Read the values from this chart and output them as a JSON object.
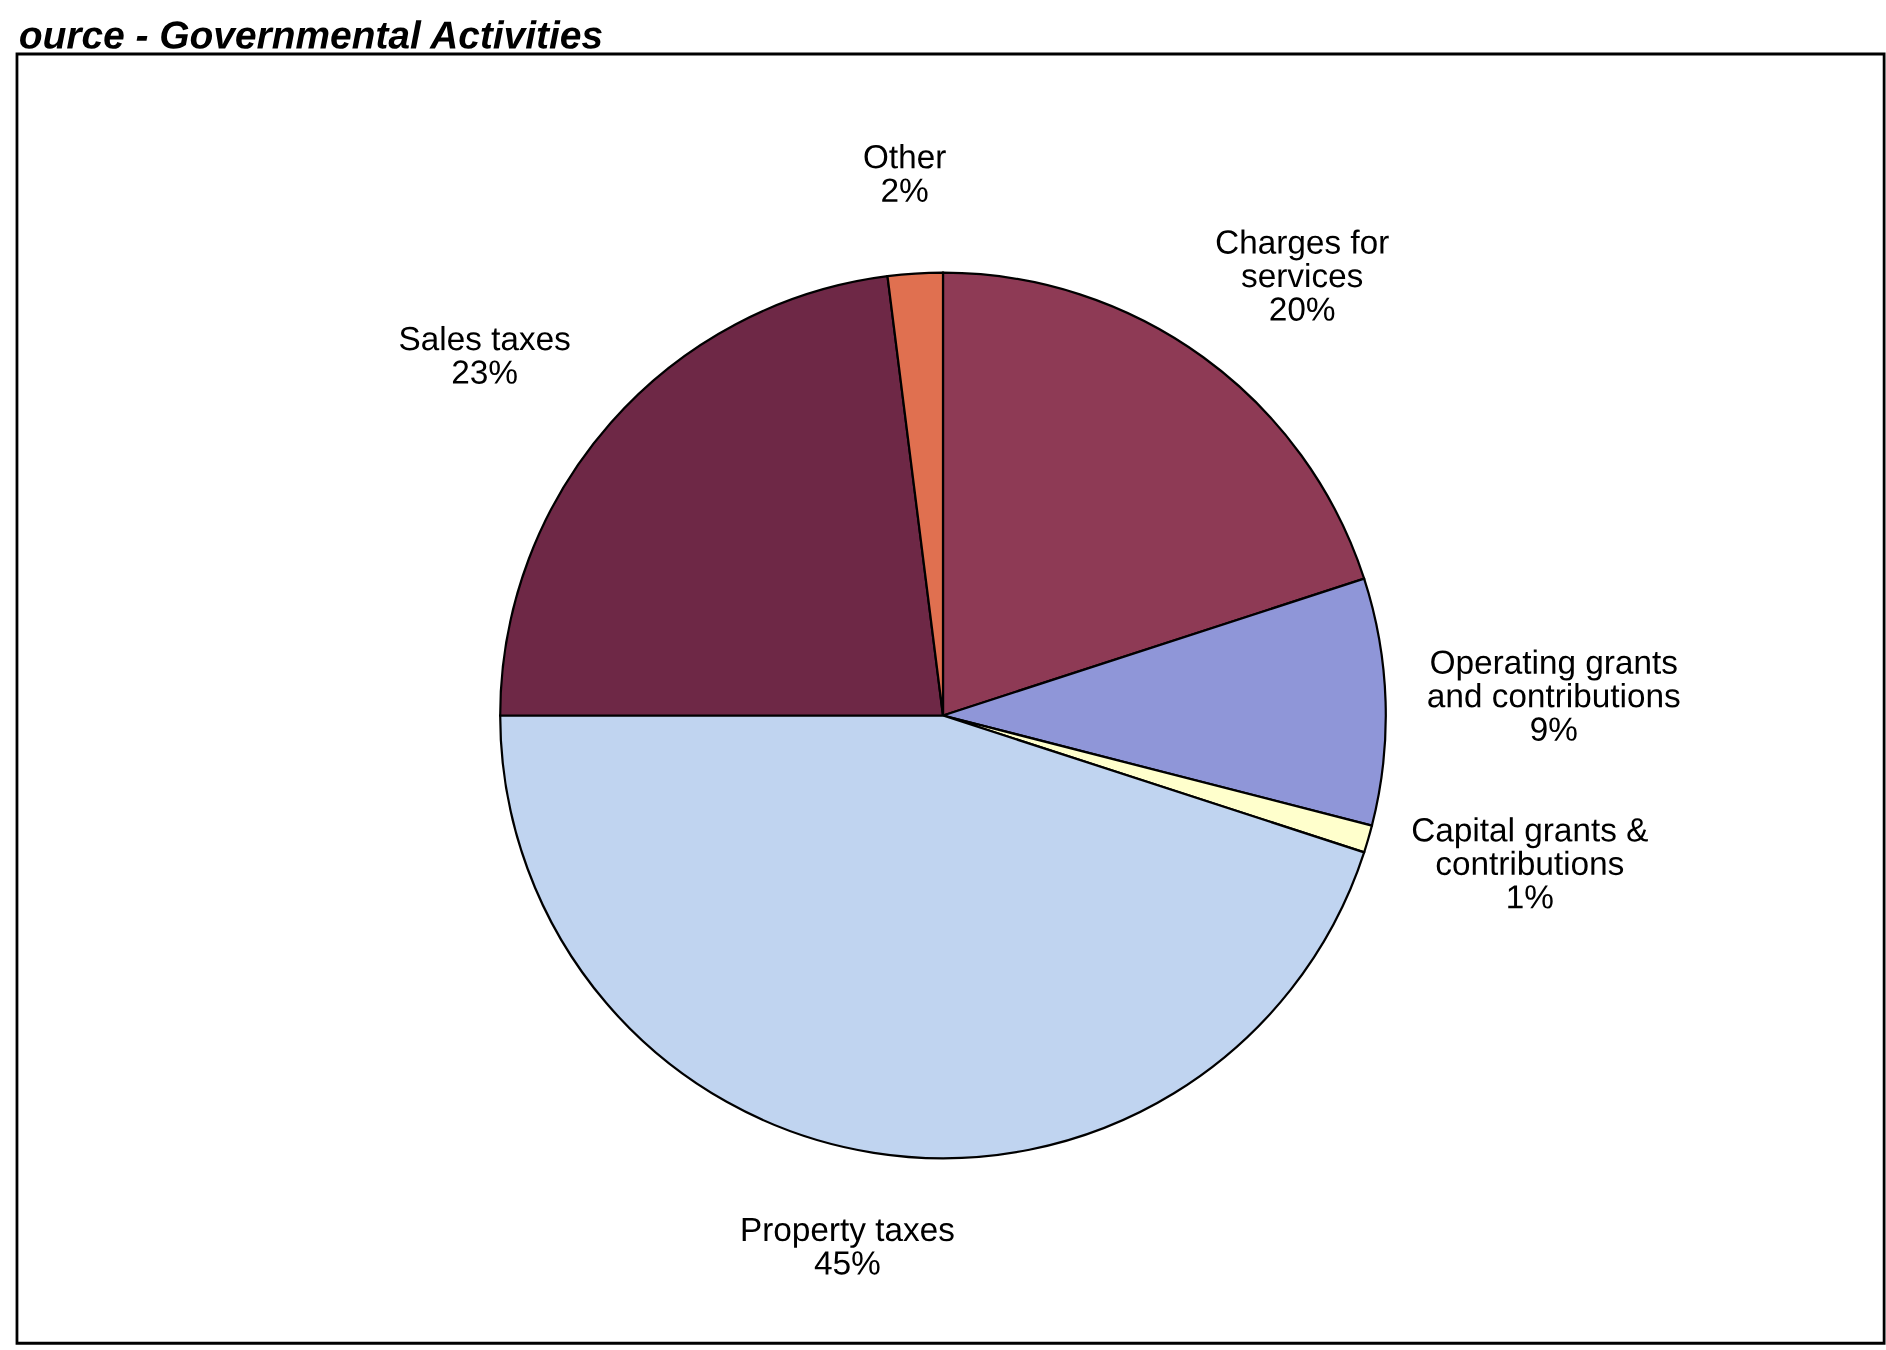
{
  "chart_data": {
    "type": "pie",
    "title": "ource - Governmental Activities",
    "categories": [
      "Charges for\nservices",
      "Operating grants\nand contributions",
      "Capital grants &\ncontributions",
      "Property taxes",
      "Sales taxes",
      "Other"
    ],
    "values": [
      20,
      9,
      1,
      45,
      23,
      2
    ],
    "colors": [
      "#8e3a55",
      "#8f96d8",
      "#ffffcc",
      "#c0d4f0",
      "#6e2846",
      "#e07050"
    ],
    "value_labels": [
      "20%",
      "9%",
      "1%",
      "45%",
      "23%",
      "2%"
    ],
    "legend": false
  }
}
